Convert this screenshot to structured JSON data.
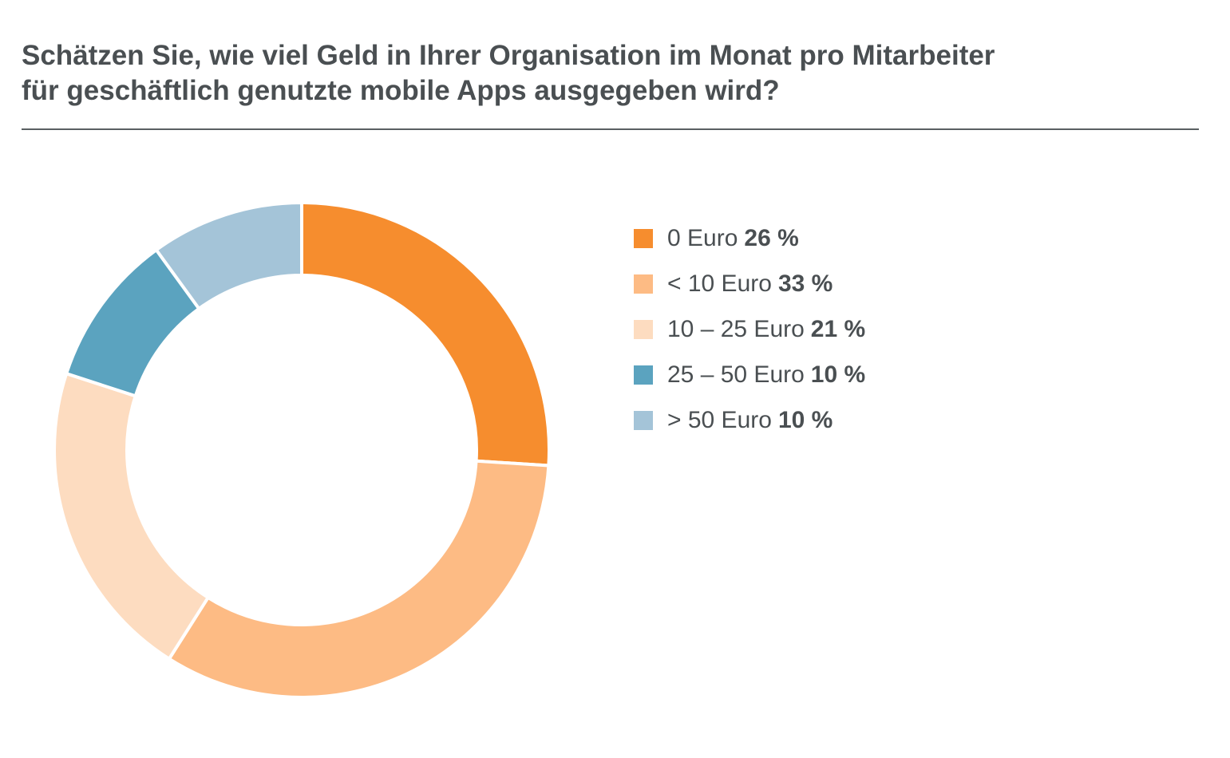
{
  "header": {
    "title_line1": "Schätzen Sie, wie viel Geld in Ihrer Organisation im Monat pro Mitarbeiter",
    "title_line2": "für geschäftlich genutzte mobile Apps ausgegeben wird?"
  },
  "chart_data": {
    "type": "pie",
    "donut": true,
    "title": "Schätzen Sie, wie viel Geld in Ihrer Organisation im Monat pro Mitarbeiter für geschäftlich genutzte mobile Apps ausgegeben wird?",
    "legend_position": "right",
    "categories": [
      "0 Euro",
      "< 10 Euro",
      "10 – 25 Euro",
      "25 – 50 Euro",
      "> 50 Euro"
    ],
    "values": [
      26,
      33,
      21,
      10,
      10
    ],
    "value_labels": [
      "26 %",
      "33 %",
      "21 %",
      "10 %",
      "10 %"
    ],
    "colors": [
      "#f68d2e",
      "#fdbb84",
      "#fddcc0",
      "#5ba3bf",
      "#a4c4d8"
    ]
  }
}
